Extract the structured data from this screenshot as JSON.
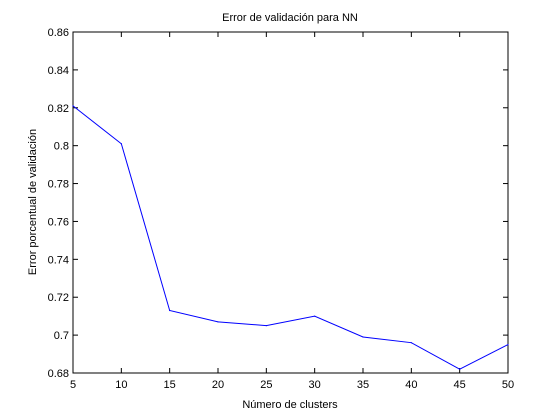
{
  "chart_data": {
    "type": "line",
    "title": "Error de validación para NN",
    "xlabel": "Número de clusters",
    "ylabel": "Error porcentual de validación",
    "xlim": [
      5,
      50
    ],
    "ylim": [
      0.68,
      0.86
    ],
    "xticks": [
      5,
      10,
      15,
      20,
      25,
      30,
      35,
      40,
      45,
      50
    ],
    "yticks": [
      0.68,
      0.7,
      0.72,
      0.74,
      0.76,
      0.78,
      0.8,
      0.82,
      0.84,
      0.86
    ],
    "ytick_labels": [
      "0.68",
      "0.7",
      "0.72",
      "0.74",
      "0.76",
      "0.78",
      "0.8",
      "0.82",
      "0.84",
      "0.86"
    ],
    "grid": false,
    "series": [
      {
        "color": "#0000ff",
        "x": [
          5,
          10,
          15,
          20,
          25,
          30,
          35,
          40,
          45,
          50
        ],
        "y": [
          0.821,
          0.801,
          0.713,
          0.707,
          0.705,
          0.71,
          0.699,
          0.696,
          0.682,
          0.695
        ]
      }
    ]
  }
}
